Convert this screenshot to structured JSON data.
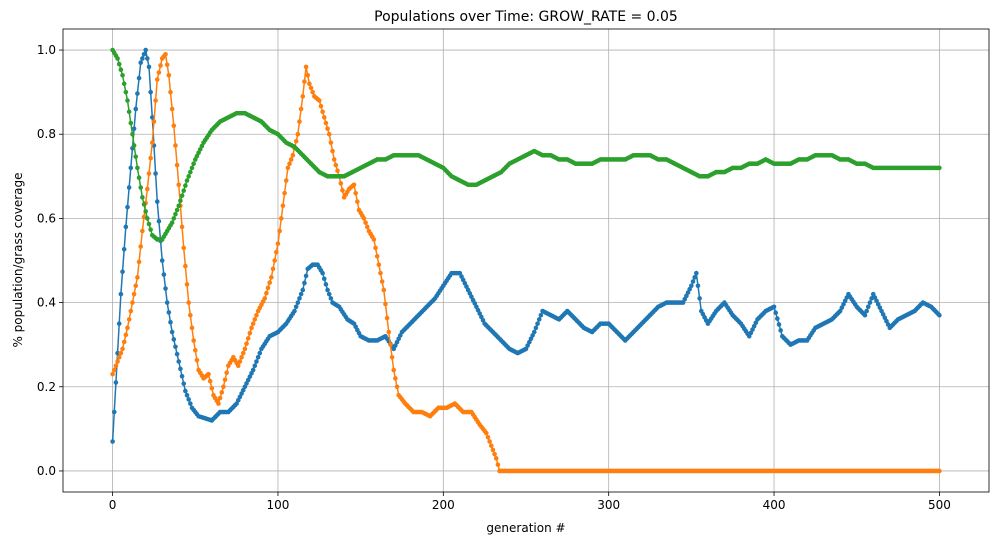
{
  "chart_data": {
    "type": "line",
    "title": "Populations over Time: GROW_RATE = 0.05",
    "xlabel": "generation #",
    "ylabel": "% population/grass coverage",
    "xlim": [
      -30,
      530
    ],
    "ylim": [
      -0.05,
      1.05
    ],
    "xticks": [
      0,
      100,
      200,
      300,
      400,
      500
    ],
    "xtick_labels": [
      "0",
      "100",
      "200",
      "300",
      "400",
      "500"
    ],
    "yticks": [
      0.0,
      0.2,
      0.4,
      0.6,
      0.8,
      1.0
    ],
    "ytick_labels": [
      "0.0",
      "0.2",
      "0.4",
      "0.6",
      "0.8",
      "1.0"
    ],
    "grid": true,
    "marker": "circle",
    "series": [
      {
        "color": "#1f77b4",
        "points": [
          [
            0,
            0.07
          ],
          [
            2,
            0.21
          ],
          [
            5,
            0.42
          ],
          [
            8,
            0.58
          ],
          [
            11,
            0.72
          ],
          [
            14,
            0.86
          ],
          [
            17,
            0.97
          ],
          [
            20,
            1.0
          ],
          [
            22,
            0.96
          ],
          [
            24,
            0.84
          ],
          [
            27,
            0.64
          ],
          [
            30,
            0.5
          ],
          [
            33,
            0.4
          ],
          [
            36,
            0.33
          ],
          [
            40,
            0.26
          ],
          [
            44,
            0.19
          ],
          [
            48,
            0.15
          ],
          [
            52,
            0.13
          ],
          [
            56,
            0.125
          ],
          [
            60,
            0.12
          ],
          [
            65,
            0.14
          ],
          [
            70,
            0.14
          ],
          [
            75,
            0.16
          ],
          [
            80,
            0.2
          ],
          [
            85,
            0.24
          ],
          [
            90,
            0.29
          ],
          [
            95,
            0.32
          ],
          [
            100,
            0.33
          ],
          [
            105,
            0.35
          ],
          [
            110,
            0.38
          ],
          [
            115,
            0.43
          ],
          [
            118,
            0.48
          ],
          [
            121,
            0.49
          ],
          [
            124,
            0.49
          ],
          [
            127,
            0.47
          ],
          [
            130,
            0.43
          ],
          [
            133,
            0.4
          ],
          [
            137,
            0.39
          ],
          [
            142,
            0.36
          ],
          [
            146,
            0.35
          ],
          [
            150,
            0.32
          ],
          [
            155,
            0.31
          ],
          [
            160,
            0.31
          ],
          [
            165,
            0.32
          ],
          [
            170,
            0.29
          ],
          [
            175,
            0.33
          ],
          [
            180,
            0.35
          ],
          [
            185,
            0.37
          ],
          [
            190,
            0.39
          ],
          [
            195,
            0.41
          ],
          [
            200,
            0.44
          ],
          [
            205,
            0.47
          ],
          [
            210,
            0.47
          ],
          [
            215,
            0.43
          ],
          [
            220,
            0.39
          ],
          [
            225,
            0.35
          ],
          [
            230,
            0.33
          ],
          [
            235,
            0.31
          ],
          [
            240,
            0.29
          ],
          [
            245,
            0.28
          ],
          [
            250,
            0.29
          ],
          [
            255,
            0.33
          ],
          [
            260,
            0.38
          ],
          [
            265,
            0.37
          ],
          [
            270,
            0.36
          ],
          [
            275,
            0.38
          ],
          [
            280,
            0.36
          ],
          [
            285,
            0.34
          ],
          [
            290,
            0.33
          ],
          [
            295,
            0.35
          ],
          [
            300,
            0.35
          ],
          [
            305,
            0.33
          ],
          [
            310,
            0.31
          ],
          [
            315,
            0.33
          ],
          [
            320,
            0.35
          ],
          [
            325,
            0.37
          ],
          [
            330,
            0.39
          ],
          [
            335,
            0.4
          ],
          [
            340,
            0.4
          ],
          [
            345,
            0.4
          ],
          [
            350,
            0.44
          ],
          [
            353,
            0.47
          ],
          [
            356,
            0.38
          ],
          [
            360,
            0.35
          ],
          [
            365,
            0.38
          ],
          [
            370,
            0.4
          ],
          [
            375,
            0.37
          ],
          [
            380,
            0.35
          ],
          [
            385,
            0.32
          ],
          [
            390,
            0.36
          ],
          [
            395,
            0.38
          ],
          [
            400,
            0.39
          ],
          [
            405,
            0.32
          ],
          [
            410,
            0.3
          ],
          [
            415,
            0.31
          ],
          [
            420,
            0.31
          ],
          [
            425,
            0.34
          ],
          [
            430,
            0.35
          ],
          [
            435,
            0.36
          ],
          [
            440,
            0.38
          ],
          [
            445,
            0.42
          ],
          [
            450,
            0.39
          ],
          [
            455,
            0.37
          ],
          [
            460,
            0.42
          ],
          [
            465,
            0.38
          ],
          [
            470,
            0.34
          ],
          [
            475,
            0.36
          ],
          [
            480,
            0.37
          ],
          [
            485,
            0.38
          ],
          [
            490,
            0.4
          ],
          [
            495,
            0.39
          ],
          [
            500,
            0.37
          ]
        ]
      },
      {
        "color": "#ff7f0e",
        "points": [
          [
            0,
            0.23
          ],
          [
            3,
            0.26
          ],
          [
            6,
            0.29
          ],
          [
            9,
            0.34
          ],
          [
            12,
            0.4
          ],
          [
            15,
            0.46
          ],
          [
            18,
            0.57
          ],
          [
            21,
            0.67
          ],
          [
            24,
            0.78
          ],
          [
            27,
            0.93
          ],
          [
            30,
            0.98
          ],
          [
            32,
            0.99
          ],
          [
            34,
            0.94
          ],
          [
            37,
            0.82
          ],
          [
            40,
            0.68
          ],
          [
            43,
            0.53
          ],
          [
            46,
            0.4
          ],
          [
            49,
            0.31
          ],
          [
            52,
            0.24
          ],
          [
            55,
            0.22
          ],
          [
            58,
            0.23
          ],
          [
            61,
            0.18
          ],
          [
            64,
            0.16
          ],
          [
            67,
            0.2
          ],
          [
            70,
            0.25
          ],
          [
            73,
            0.27
          ],
          [
            76,
            0.25
          ],
          [
            80,
            0.29
          ],
          [
            84,
            0.34
          ],
          [
            88,
            0.38
          ],
          [
            92,
            0.41
          ],
          [
            96,
            0.46
          ],
          [
            100,
            0.54
          ],
          [
            103,
            0.63
          ],
          [
            106,
            0.72
          ],
          [
            109,
            0.75
          ],
          [
            112,
            0.8
          ],
          [
            115,
            0.89
          ],
          [
            117,
            0.96
          ],
          [
            119,
            0.92
          ],
          [
            122,
            0.89
          ],
          [
            125,
            0.88
          ],
          [
            128,
            0.84
          ],
          [
            131,
            0.8
          ],
          [
            134,
            0.74
          ],
          [
            137,
            0.7
          ],
          [
            140,
            0.65
          ],
          [
            143,
            0.67
          ],
          [
            146,
            0.68
          ],
          [
            149,
            0.62
          ],
          [
            152,
            0.6
          ],
          [
            155,
            0.57
          ],
          [
            158,
            0.55
          ],
          [
            161,
            0.49
          ],
          [
            164,
            0.43
          ],
          [
            167,
            0.33
          ],
          [
            170,
            0.24
          ],
          [
            173,
            0.18
          ],
          [
            177,
            0.16
          ],
          [
            182,
            0.14
          ],
          [
            187,
            0.14
          ],
          [
            192,
            0.13
          ],
          [
            197,
            0.15
          ],
          [
            202,
            0.15
          ],
          [
            207,
            0.16
          ],
          [
            212,
            0.14
          ],
          [
            217,
            0.14
          ],
          [
            222,
            0.11
          ],
          [
            226,
            0.09
          ],
          [
            229,
            0.06
          ],
          [
            232,
            0.03
          ],
          [
            234,
            0.0
          ],
          [
            260,
            0.0
          ],
          [
            300,
            0.0
          ],
          [
            350,
            0.0
          ],
          [
            400,
            0.0
          ],
          [
            450,
            0.0
          ],
          [
            500,
            0.0
          ]
        ]
      },
      {
        "color": "#2ca02c",
        "points": [
          [
            0,
            1.0
          ],
          [
            3,
            0.98
          ],
          [
            6,
            0.94
          ],
          [
            9,
            0.88
          ],
          [
            12,
            0.8
          ],
          [
            15,
            0.72
          ],
          [
            18,
            0.65
          ],
          [
            21,
            0.6
          ],
          [
            24,
            0.56
          ],
          [
            27,
            0.55
          ],
          [
            30,
            0.55
          ],
          [
            33,
            0.57
          ],
          [
            36,
            0.59
          ],
          [
            40,
            0.63
          ],
          [
            45,
            0.69
          ],
          [
            50,
            0.74
          ],
          [
            55,
            0.78
          ],
          [
            60,
            0.81
          ],
          [
            65,
            0.83
          ],
          [
            70,
            0.84
          ],
          [
            75,
            0.85
          ],
          [
            80,
            0.85
          ],
          [
            85,
            0.84
          ],
          [
            90,
            0.83
          ],
          [
            95,
            0.81
          ],
          [
            100,
            0.8
          ],
          [
            105,
            0.78
          ],
          [
            110,
            0.77
          ],
          [
            115,
            0.75
          ],
          [
            120,
            0.73
          ],
          [
            125,
            0.71
          ],
          [
            130,
            0.7
          ],
          [
            135,
            0.7
          ],
          [
            140,
            0.7
          ],
          [
            145,
            0.71
          ],
          [
            150,
            0.72
          ],
          [
            155,
            0.73
          ],
          [
            160,
            0.74
          ],
          [
            165,
            0.74
          ],
          [
            170,
            0.75
          ],
          [
            175,
            0.75
          ],
          [
            180,
            0.75
          ],
          [
            185,
            0.75
          ],
          [
            190,
            0.74
          ],
          [
            195,
            0.73
          ],
          [
            200,
            0.72
          ],
          [
            205,
            0.7
          ],
          [
            210,
            0.69
          ],
          [
            215,
            0.68
          ],
          [
            220,
            0.68
          ],
          [
            225,
            0.69
          ],
          [
            230,
            0.7
          ],
          [
            235,
            0.71
          ],
          [
            240,
            0.73
          ],
          [
            245,
            0.74
          ],
          [
            250,
            0.75
          ],
          [
            255,
            0.76
          ],
          [
            260,
            0.75
          ],
          [
            265,
            0.75
          ],
          [
            270,
            0.74
          ],
          [
            275,
            0.74
          ],
          [
            280,
            0.73
          ],
          [
            285,
            0.73
          ],
          [
            290,
            0.73
          ],
          [
            295,
            0.74
          ],
          [
            300,
            0.74
          ],
          [
            305,
            0.74
          ],
          [
            310,
            0.74
          ],
          [
            315,
            0.75
          ],
          [
            320,
            0.75
          ],
          [
            325,
            0.75
          ],
          [
            330,
            0.74
          ],
          [
            335,
            0.74
          ],
          [
            340,
            0.73
          ],
          [
            345,
            0.72
          ],
          [
            350,
            0.71
          ],
          [
            355,
            0.7
          ],
          [
            360,
            0.7
          ],
          [
            365,
            0.71
          ],
          [
            370,
            0.71
          ],
          [
            375,
            0.72
          ],
          [
            380,
            0.72
          ],
          [
            385,
            0.73
          ],
          [
            390,
            0.73
          ],
          [
            395,
            0.74
          ],
          [
            400,
            0.73
          ],
          [
            405,
            0.73
          ],
          [
            410,
            0.73
          ],
          [
            415,
            0.74
          ],
          [
            420,
            0.74
          ],
          [
            425,
            0.75
          ],
          [
            430,
            0.75
          ],
          [
            435,
            0.75
          ],
          [
            440,
            0.74
          ],
          [
            445,
            0.74
          ],
          [
            450,
            0.73
          ],
          [
            455,
            0.73
          ],
          [
            460,
            0.72
          ],
          [
            465,
            0.72
          ],
          [
            470,
            0.72
          ],
          [
            475,
            0.72
          ],
          [
            480,
            0.72
          ],
          [
            485,
            0.72
          ],
          [
            490,
            0.72
          ],
          [
            495,
            0.72
          ],
          [
            500,
            0.72
          ]
        ]
      }
    ]
  }
}
